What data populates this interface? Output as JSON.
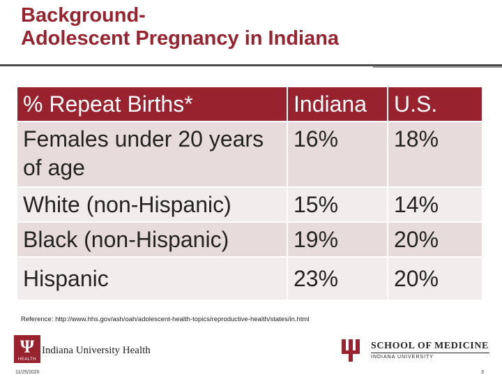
{
  "slide": {
    "title_line1": "Background-",
    "title_line2": "Adolescent Pregnancy in Indiana"
  },
  "table": {
    "headers": [
      "% Repeat Births*",
      "Indiana",
      "U.S."
    ],
    "rows": [
      [
        "Females under 20 years of age",
        "16%",
        "18%"
      ],
      [
        "White (non-Hispanic)",
        "15%",
        "14%"
      ],
      [
        "Black (non-Hispanic)",
        "19%",
        "20%"
      ],
      [
        "Hispanic",
        "23%",
        "20%"
      ]
    ]
  },
  "reference": "Reference: http://www.hhs.gov/ash/oah/adolescent-health-topics/reproductive-health/states/in.html",
  "footer": {
    "iuh_logo_mark": "HEALTH",
    "iuh_name": "Indiana University Health",
    "som_title": "SCHOOL OF MEDICINE",
    "som_subtitle": "INDIANA UNIVERSITY",
    "date": "11/25/2020",
    "page_number": "3"
  },
  "colors": {
    "accent": "#99222f",
    "row_dark": "#e7dcdb",
    "row_light": "#f2eded"
  }
}
